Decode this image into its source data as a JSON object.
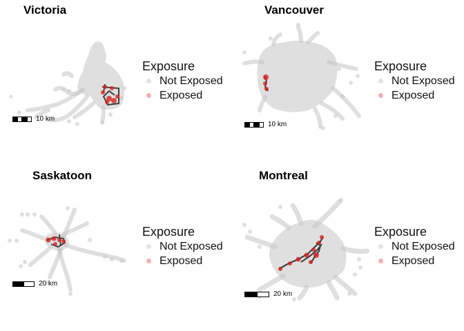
{
  "panels": {
    "victoria": {
      "title": "Victoria",
      "scale_label": "10 km"
    },
    "vancouver": {
      "title": "Vancouver",
      "scale_label": "10 km"
    },
    "saskatoon": {
      "title": "Saskatoon",
      "scale_label": "20 km"
    },
    "montreal": {
      "title": "Montreal",
      "scale_label": "20 km"
    }
  },
  "legend": {
    "title": "Exposure",
    "items": [
      {
        "label": "Not Exposed",
        "color": "#c8c8c8"
      },
      {
        "label": "Exposed",
        "color": "#e06060"
      }
    ]
  },
  "colors": {
    "not_exposed_points": "#c4c4c4",
    "exposed_points": "#d42020",
    "exposed_track": "#404040"
  }
}
